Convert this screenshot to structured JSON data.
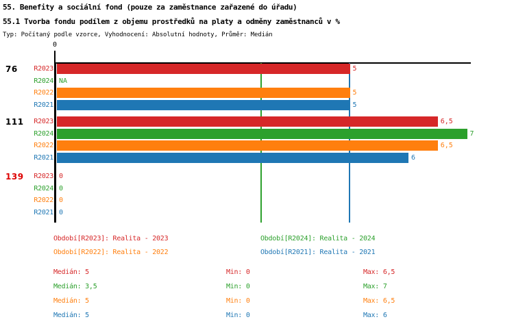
{
  "colors": {
    "red": "#d62728",
    "green": "#2ca02c",
    "orange": "#ff7f0e",
    "blue": "#1f77b4",
    "highlight_red": "#dd0000",
    "axis_black": "#000000"
  },
  "header": {
    "title_line1": "55. Benefity a sociální fond (pouze za zaměstnance zařazené do úřadu)",
    "title_line2": "55.1 Tvorba fondu podílem z objemu prostředků na platy a odměny zaměstnanců v %",
    "meta": "Typ: Počítaný podle vzorce, Vyhodnocení: Absolutní hodnoty, Průměr: Medián"
  },
  "chart_data": {
    "type": "bar",
    "orientation": "horizontal",
    "x_axis": {
      "origin_label": "0",
      "xlim": [
        0,
        7.07
      ],
      "ticks_shown": [
        "0"
      ]
    },
    "series_colors": {
      "R2023": "#d62728",
      "R2024": "#2ca02c",
      "R2022": "#ff7f0e",
      "R2021": "#1f77b4"
    },
    "groups": [
      {
        "id": "76",
        "highlighted": false,
        "bars": [
          {
            "series": "R2023",
            "value": 5,
            "label": "5"
          },
          {
            "series": "R2024",
            "value": null,
            "label": "NA"
          },
          {
            "series": "R2022",
            "value": 5,
            "label": "5"
          },
          {
            "series": "R2021",
            "value": 5,
            "label": "5"
          }
        ]
      },
      {
        "id": "111",
        "highlighted": false,
        "bars": [
          {
            "series": "R2023",
            "value": 6.5,
            "label": "6,5"
          },
          {
            "series": "R2024",
            "value": 7,
            "label": "7"
          },
          {
            "series": "R2022",
            "value": 6.5,
            "label": "6,5"
          },
          {
            "series": "R2021",
            "value": 6,
            "label": "6"
          }
        ]
      },
      {
        "id": "139",
        "highlighted": true,
        "bars": [
          {
            "series": "R2023",
            "value": 0,
            "label": "0"
          },
          {
            "series": "R2024",
            "value": 0,
            "label": "0"
          },
          {
            "series": "R2022",
            "value": 0,
            "label": "0"
          },
          {
            "series": "R2021",
            "value": 0,
            "label": "0"
          }
        ]
      }
    ],
    "median_lines": [
      {
        "series": "R2024",
        "value": 3.5
      },
      {
        "series": "R2021",
        "value": 5
      }
    ],
    "legend": [
      {
        "series": "R2023",
        "label": "Období[R2023]: Realita - 2023"
      },
      {
        "series": "R2024",
        "label": "Období[R2024]: Realita - 2024"
      },
      {
        "series": "R2022",
        "label": "Období[R2022]: Realita - 2022"
      },
      {
        "series": "R2021",
        "label": "Období[R2021]: Realita - 2021"
      }
    ],
    "stats": [
      {
        "series": "R2023",
        "median": "Medián: 5",
        "min": "Min: 0",
        "max": "Max: 6,5"
      },
      {
        "series": "R2024",
        "median": "Medián: 3,5",
        "min": "Min: 0",
        "max": "Max: 7"
      },
      {
        "series": "R2022",
        "median": "Medián: 5",
        "min": "Min: 0",
        "max": "Max: 6,5"
      },
      {
        "series": "R2021",
        "median": "Medián: 5",
        "min": "Min: 0",
        "max": "Max: 6"
      }
    ]
  }
}
